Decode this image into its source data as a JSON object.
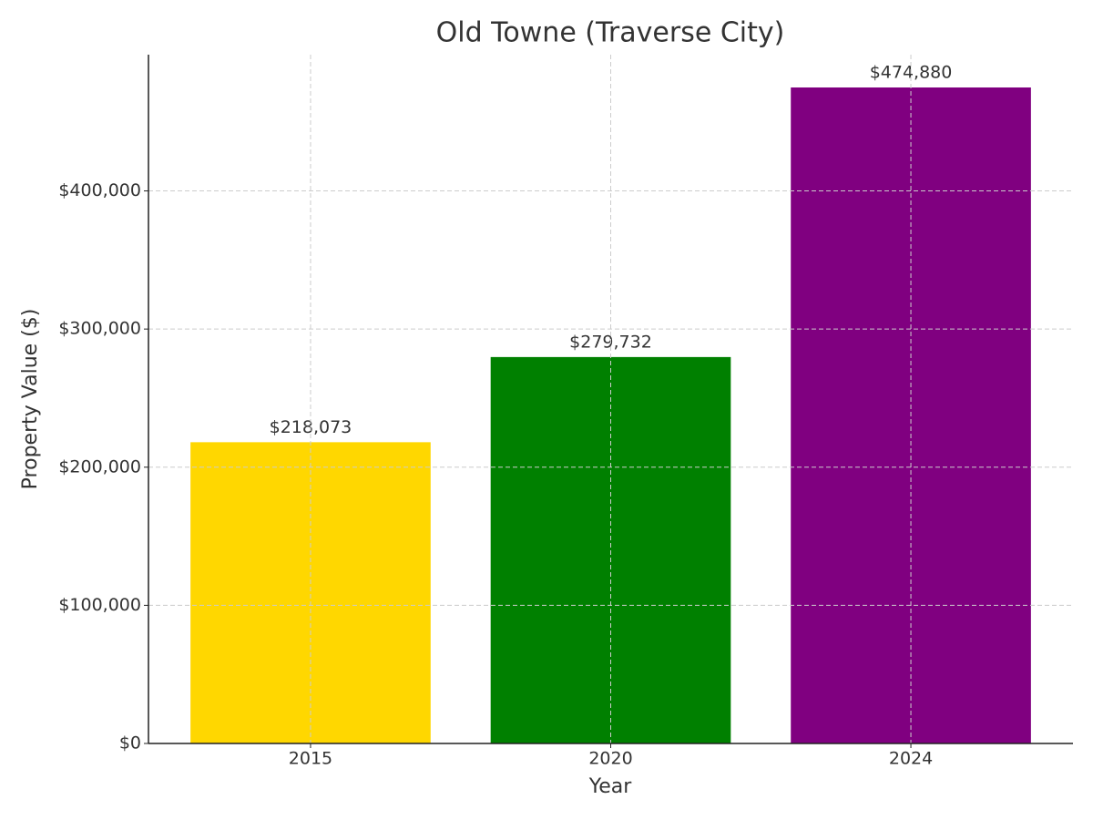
{
  "chart_data": {
    "type": "bar",
    "title": "Old Towne (Traverse City)",
    "x_label": "Year",
    "y_label": "Property Value ($)",
    "categories": [
      "2015",
      "2020",
      "2024"
    ],
    "values": [
      218073,
      279732,
      474880
    ],
    "value_labels": [
      "$218,073",
      "$279,732",
      "$474,880"
    ],
    "colors": [
      "#ffd700",
      "#008000",
      "#800080"
    ],
    "ylim": [
      0,
      498624
    ],
    "yticks": [
      {
        "value": 0,
        "label": "$0"
      },
      {
        "value": 100000,
        "label": "$100,000"
      },
      {
        "value": 200000,
        "label": "$200,000"
      },
      {
        "value": 300000,
        "label": "$300,000"
      },
      {
        "value": 400000,
        "label": "$400,000"
      }
    ],
    "grid": true
  }
}
